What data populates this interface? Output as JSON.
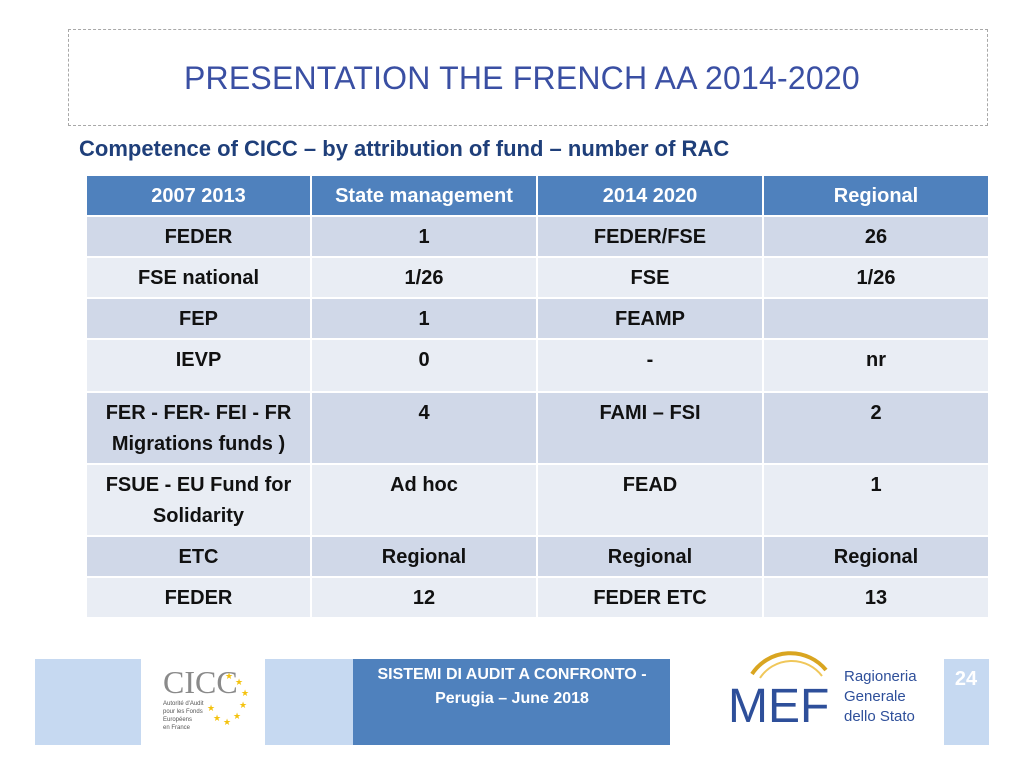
{
  "slide": {
    "title": "PRESENTATION THE FRENCH AA 2014-2020",
    "subtitle": "Competence of CICC – by attribution of fund – number of RAC"
  },
  "table": {
    "headers": [
      "2007 2013",
      "State management",
      "2014 2020",
      "Regional"
    ],
    "rows": [
      [
        "FEDER",
        "1",
        "FEDER/FSE",
        "26"
      ],
      [
        "FSE  national",
        "1/26",
        "FSE",
        "1/26"
      ],
      [
        "FEP",
        "1",
        "FEAMP",
        ""
      ],
      [
        "IEVP",
        "0",
        "-",
        "nr"
      ],
      [
        "FER - FER- FEI - FR Migrations funds )",
        "4",
        "FAMI – FSI",
        "2"
      ],
      [
        "FSUE  - EU Fund for Solidarity",
        "Ad hoc",
        "FEAD",
        "1"
      ],
      [
        "ETC",
        "Regional",
        "Regional",
        "Regional"
      ],
      [
        "FEDER",
        "12",
        "FEDER  ETC",
        "13"
      ]
    ]
  },
  "footer": {
    "line1": "SISTEMI DI AUDIT A CONFRONTO  -",
    "line2": "Perugia – June 2018",
    "page_number": "24",
    "cicc_logo": {
      "text": "CICC",
      "small_text": [
        "Autorité d'Audit",
        "pour les Fonds",
        "Européens",
        "en France"
      ]
    },
    "mef_logo": {
      "text": "MEF",
      "caption": [
        "Ragioneria",
        "Generale",
        "dello Stato"
      ]
    }
  },
  "colors": {
    "title": "#3a4fa3",
    "subtitle": "#1f3f7a",
    "header_bg": "#4f81bd",
    "row_dark": "#d0d8e8",
    "row_light": "#e9edf4",
    "footer_light": "#c6d9f1",
    "footer_dark": "#4f81bd",
    "eu_star": "#f4c20d",
    "mef_gold": "#d9a520"
  }
}
